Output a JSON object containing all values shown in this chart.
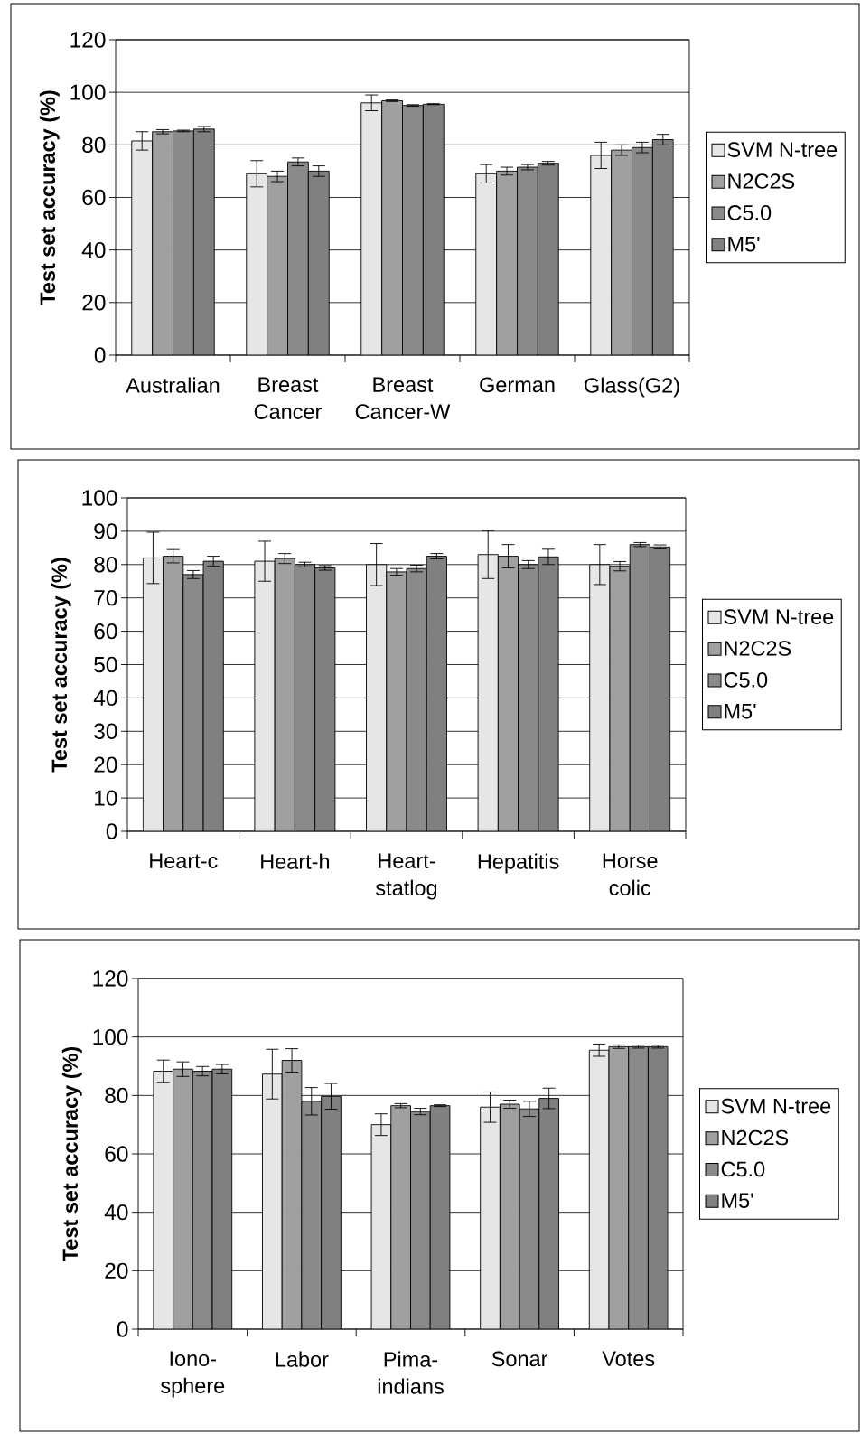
{
  "chart_data": [
    {
      "type": "bar",
      "ylabel": "Test set accuracy (%)",
      "categories": [
        "Australian",
        "Breast Cancer",
        "Breast Cancer-W",
        "German",
        "Glass(G2)"
      ],
      "series": [
        {
          "name": "SVM N-tree",
          "color": "#e6e6e6",
          "values": [
            81.5,
            69,
            96,
            69,
            76
          ],
          "errors": [
            3.5,
            5,
            3,
            3.5,
            5
          ]
        },
        {
          "name": "N2C2S",
          "color": "#a0a0a0",
          "values": [
            85,
            68,
            96.8,
            70,
            78
          ],
          "errors": [
            0.8,
            2,
            0.3,
            1.5,
            2
          ]
        },
        {
          "name": "C5.0",
          "color": "#8a8a8a",
          "values": [
            85.3,
            73.5,
            95,
            71.5,
            79
          ],
          "errors": [
            0.3,
            1.5,
            0.3,
            1,
            2
          ]
        },
        {
          "name": "M5'",
          "color": "#808080",
          "values": [
            86,
            70,
            95.5,
            73,
            82
          ],
          "errors": [
            1,
            2,
            0.2,
            0.7,
            2
          ]
        }
      ],
      "ylim": [
        0,
        120
      ],
      "yticks": [
        0,
        20,
        40,
        60,
        80,
        100,
        120
      ],
      "grid": "y",
      "legend": "right"
    },
    {
      "type": "bar",
      "ylabel": "Test set accuracy (%)",
      "categories": [
        "Heart-c",
        "Heart-h",
        "Heart-statlog",
        "Hepatitis",
        "Horse colic"
      ],
      "series": [
        {
          "name": "SVM N-tree",
          "color": "#e6e6e6",
          "values": [
            82,
            81,
            80,
            83,
            80
          ],
          "errors": [
            7.7,
            6,
            6.3,
            7.2,
            6
          ]
        },
        {
          "name": "N2C2S",
          "color": "#a0a0a0",
          "values": [
            82.5,
            81.8,
            77.8,
            82.5,
            79.5
          ],
          "errors": [
            2,
            1.5,
            1,
            3.5,
            1.4
          ]
        },
        {
          "name": "C5.0",
          "color": "#8a8a8a",
          "values": [
            77,
            80,
            78.8,
            80,
            86
          ],
          "errors": [
            1.2,
            0.7,
            1,
            1.2,
            0.6
          ]
        },
        {
          "name": "M5'",
          "color": "#808080",
          "values": [
            81,
            79,
            82.5,
            82.3,
            85.3
          ],
          "errors": [
            1.5,
            0.7,
            0.8,
            2.3,
            0.6
          ]
        }
      ],
      "ylim": [
        0,
        100
      ],
      "yticks": [
        0,
        10,
        20,
        30,
        40,
        50,
        60,
        70,
        80,
        90,
        100
      ],
      "grid": "y",
      "legend": "right"
    },
    {
      "type": "bar",
      "ylabel": "Test set accuracy (%)",
      "categories": [
        "Iono-sphere",
        "Labor",
        "Pima-indians",
        "Sonar",
        "Votes"
      ],
      "series": [
        {
          "name": "SVM N-tree",
          "color": "#e6e6e6",
          "values": [
            88.3,
            87.3,
            70,
            76,
            95.5
          ],
          "errors": [
            3.8,
            8.5,
            3.7,
            5.2,
            2.1
          ]
        },
        {
          "name": "N2C2S",
          "color": "#a0a0a0",
          "values": [
            89,
            92,
            76.5,
            77,
            96.7
          ],
          "errors": [
            2.5,
            4,
            0.7,
            1.4,
            0.6
          ]
        },
        {
          "name": "C5.0",
          "color": "#8a8a8a",
          "values": [
            88.3,
            78,
            74.5,
            75.4,
            96.7
          ],
          "errors": [
            1.6,
            4.7,
            1.1,
            2.6,
            0.5
          ]
        },
        {
          "name": "M5'",
          "color": "#808080",
          "values": [
            89,
            79.7,
            76.5,
            79,
            96.7
          ],
          "errors": [
            1.6,
            4.4,
            0.3,
            3.5,
            0.5
          ]
        }
      ],
      "ylim": [
        0,
        120
      ],
      "yticks": [
        0,
        20,
        40,
        60,
        80,
        100,
        120
      ],
      "grid": "y",
      "legend": "right"
    }
  ]
}
